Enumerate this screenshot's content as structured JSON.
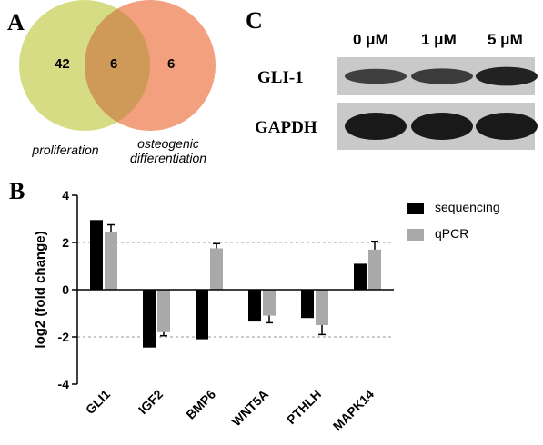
{
  "panels": {
    "a": "A",
    "b": "B",
    "c": "C"
  },
  "venn": {
    "left_only": "42",
    "overlap": "6",
    "right_only": "6",
    "left_label": "proliferation",
    "right_label_line1": "osteogenic",
    "right_label_line2": "differentiation",
    "colors": {
      "left": "#d6dc84",
      "right": "#f2a07d",
      "overlap": "#cf9a58"
    }
  },
  "blot": {
    "lanes": [
      "0 μM",
      "1 μM",
      "5 μM"
    ],
    "rows": [
      {
        "label": "GLI-1",
        "intensity": [
          0.55,
          0.6,
          0.9
        ]
      },
      {
        "label": "GAPDH",
        "intensity": [
          1.0,
          1.0,
          1.0
        ]
      }
    ]
  },
  "chart_data": {
    "type": "bar",
    "categories": [
      "GLI1",
      "IGF2",
      "BMP6",
      "WNT5A",
      "PTHLH",
      "MAPK14"
    ],
    "series": [
      {
        "name": "sequencing",
        "color": "#000000",
        "values": [
          2.95,
          -2.45,
          -2.1,
          -1.35,
          -1.2,
          1.1
        ]
      },
      {
        "name": "qPCR",
        "color": "#a9a9a9",
        "values": [
          2.45,
          -1.8,
          1.75,
          -1.1,
          -1.5,
          1.7
        ],
        "error": [
          0.3,
          0.15,
          0.2,
          0.3,
          0.4,
          0.35
        ]
      }
    ],
    "ylabel": "log2 (fold change)",
    "ylim": [
      -4,
      4
    ],
    "yticks": [
      "4",
      "2",
      "0",
      "-2",
      "-4"
    ],
    "reference_lines": [
      2,
      -2
    ],
    "legend_position": "top-right"
  }
}
